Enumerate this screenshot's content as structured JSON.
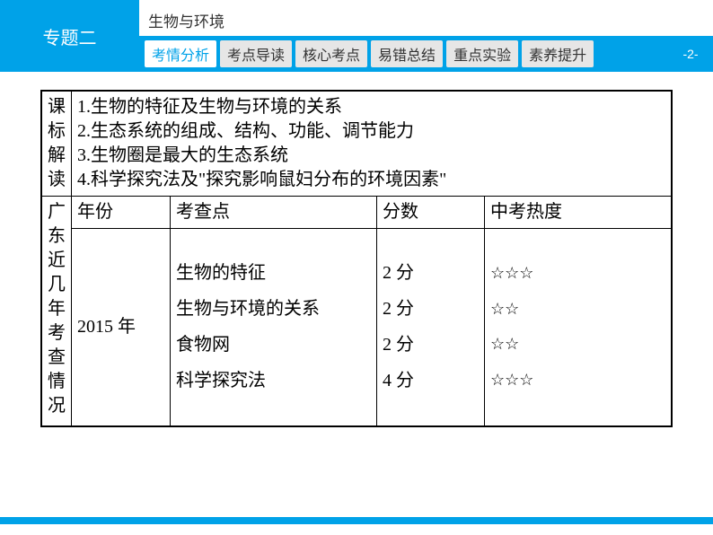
{
  "header": {
    "topic_label": "专题二",
    "subtitle": "生物与环境",
    "page_number": "-2-",
    "tabs": [
      {
        "label": "考情分析",
        "active": true
      },
      {
        "label": "考点导读",
        "active": false
      },
      {
        "label": "核心考点",
        "active": false
      },
      {
        "label": "易错总结",
        "active": false
      },
      {
        "label": "重点实验",
        "active": false
      },
      {
        "label": "素养提升",
        "active": false
      }
    ]
  },
  "colors": {
    "brand": "#00a2e8",
    "tab_inactive_bg": "#e6e6e6"
  },
  "interpretation": {
    "side_label": "课标解读",
    "lines": [
      "1.生物的特征及生物与环境的关系",
      "2.生态系统的组成、结构、功能、调节能力",
      "3.生物圈是最大的生态系统",
      "4.科学探究法及\"探究影响鼠妇分布的环境因素\""
    ]
  },
  "exam": {
    "side_label": "广东近几年考查情况",
    "columns": {
      "year": "年份",
      "point": "考查点",
      "score": "分数",
      "heat": "中考热度"
    },
    "row": {
      "year": "2015 年",
      "points": [
        "生物的特征",
        "生物与环境的关系",
        "食物网",
        "科学探究法"
      ],
      "scores": [
        "2 分",
        "2 分",
        "2 分",
        "4 分"
      ],
      "heat": [
        "☆☆☆",
        "☆☆",
        "☆☆",
        "☆☆☆"
      ]
    }
  }
}
